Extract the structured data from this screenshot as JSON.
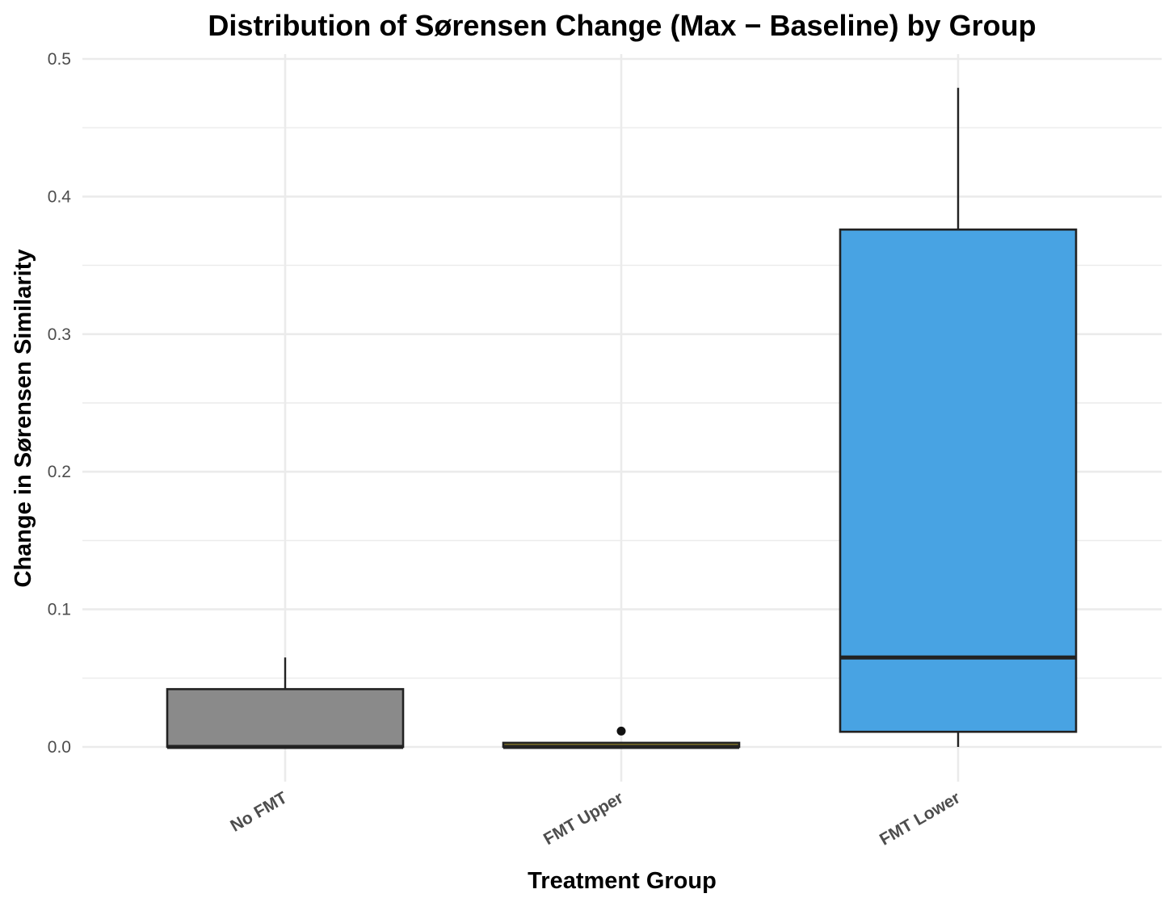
{
  "chart_data": {
    "type": "boxplot",
    "title": "Distribution of Sørensen Change (Max − Baseline) by Group",
    "xlabel": "Treatment Group",
    "ylabel": "Change in Sørensen Similarity",
    "ylim": [
      -0.025,
      0.505
    ],
    "yticks": [
      0.0,
      0.1,
      0.2,
      0.3,
      0.4,
      0.5
    ],
    "ytick_labels": [
      "0.0",
      "0.1",
      "0.2",
      "0.3",
      "0.4",
      "0.5"
    ],
    "grid": true,
    "legend": "none",
    "categories": [
      "No FMT",
      "FMT Upper",
      "FMT Lower"
    ],
    "boxes": [
      {
        "name": "No FMT",
        "whisker_low": 0.0,
        "q1": 0.0,
        "median": 0.0,
        "q3": 0.042,
        "whisker_high": 0.065,
        "outliers": [],
        "color": "#8a8a8a"
      },
      {
        "name": "FMT Upper",
        "whisker_low": 0.0,
        "q1": 0.0,
        "median": 0.0,
        "q3": 0.003,
        "whisker_high": 0.003,
        "outliers": [
          0.0115
        ],
        "color": "#8b7a28"
      },
      {
        "name": "FMT Lower",
        "whisker_low": 0.0,
        "q1": 0.011,
        "median": 0.065,
        "q3": 0.376,
        "whisker_high": 0.479,
        "outliers": [],
        "color": "#48a3e3"
      }
    ]
  }
}
